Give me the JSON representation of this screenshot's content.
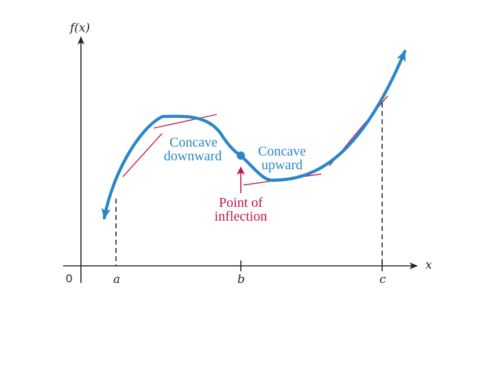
{
  "axes": {
    "y_label": "f(x)",
    "x_label": "x",
    "origin_label": "0"
  },
  "ticks": {
    "a": "a",
    "b": "b",
    "c": "c"
  },
  "annotations": {
    "concave_down_line1": "Concave",
    "concave_down_line2": "downward",
    "concave_up_line1": "Concave",
    "concave_up_line2": "upward",
    "inflection_line1": "Point of",
    "inflection_line2": "inflection"
  },
  "colors": {
    "curve": "#2a86c6",
    "tangent": "#c0154a",
    "axis": "#222222",
    "inflection_arrow": "#c0154a"
  }
}
